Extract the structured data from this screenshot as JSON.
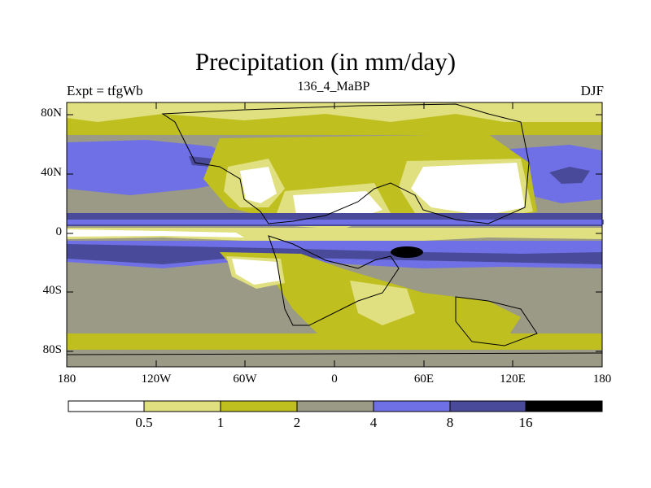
{
  "title": "Precipitation (in mm/day)",
  "subtitle_left": "Expt = tfgWb",
  "subtitle_center": "136_4_MaBP",
  "subtitle_right": "DJF",
  "lat_labels": [
    "80N",
    "40N",
    "0",
    "40S",
    "80S"
  ],
  "lon_labels": [
    "180",
    "120W",
    "60W",
    "0",
    "60E",
    "120E",
    "180"
  ],
  "colorbar": {
    "labels": [
      "0.5",
      "1",
      "2",
      "4",
      "8",
      "16"
    ],
    "colors": [
      "#ffffff",
      "#e0e080",
      "#bfbf1f",
      "#9a9a86",
      "#7070e6",
      "#4a4a9a",
      "#000000"
    ]
  }
}
